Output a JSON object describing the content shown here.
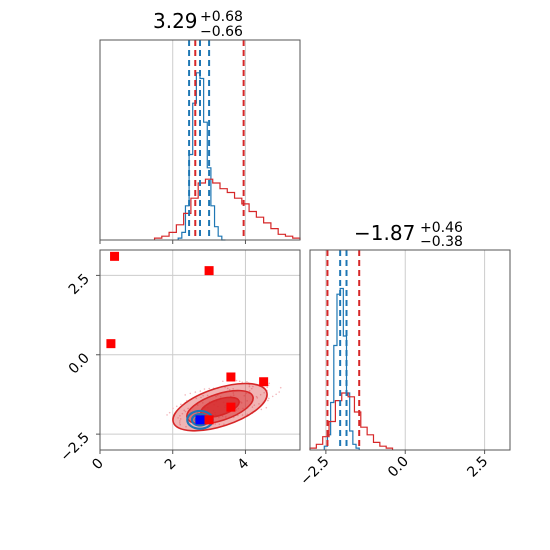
{
  "chart_data": [
    {
      "type": "histogram",
      "panel": "top-left marginal",
      "title": {
        "value": "3.29",
        "plus": "+0.68",
        "minus": "−0.66"
      },
      "xlim": [
        0,
        5.5
      ],
      "grid": true,
      "series": [
        {
          "color": "#1f77b4",
          "x": [
            2.2,
            2.3,
            2.4,
            2.5,
            2.6,
            2.7,
            2.8,
            2.9,
            3.0,
            3.1,
            3.2,
            3.3,
            3.4
          ],
          "values": [
            0.01,
            0.04,
            0.18,
            0.45,
            0.72,
            0.88,
            0.85,
            0.62,
            0.38,
            0.18,
            0.07,
            0.02,
            0.0
          ]
        },
        {
          "color": "#d62728",
          "x": [
            1.6,
            1.8,
            2.0,
            2.2,
            2.4,
            2.6,
            2.8,
            3.0,
            3.2,
            3.4,
            3.6,
            3.8,
            4.0,
            4.2,
            4.4,
            4.6,
            4.8,
            5.0,
            5.2,
            5.4
          ],
          "values": [
            0.01,
            0.02,
            0.04,
            0.08,
            0.14,
            0.22,
            0.3,
            0.32,
            0.3,
            0.27,
            0.25,
            0.22,
            0.19,
            0.15,
            0.12,
            0.09,
            0.06,
            0.03,
            0.02,
            0.01
          ]
        }
      ],
      "quantile_lines": [
        {
          "color": "#1f77b4",
          "x": [
            2.45,
            2.75,
            3.0
          ]
        },
        {
          "color": "#d62728",
          "x": [
            2.62,
            3.95
          ]
        }
      ]
    },
    {
      "type": "histogram",
      "panel": "bottom-right marginal",
      "title": {
        "value": "−1.87",
        "plus": "+0.46",
        "minus": "−0.38"
      },
      "xlim": [
        -3.0,
        3.3
      ],
      "x_ticks": [
        "−2.5",
        "0.0",
        "2.5"
      ],
      "grid": true,
      "series": [
        {
          "color": "#1f77b4",
          "x": [
            -2.5,
            -2.4,
            -2.3,
            -2.2,
            -2.1,
            -2.0,
            -1.9,
            -1.8,
            -1.7,
            -1.6,
            -1.5
          ],
          "values": [
            0.02,
            0.08,
            0.25,
            0.55,
            0.82,
            0.85,
            0.6,
            0.3,
            0.1,
            0.03,
            0.01
          ]
        },
        {
          "color": "#d62728",
          "x": [
            -2.9,
            -2.7,
            -2.5,
            -2.3,
            -2.1,
            -1.9,
            -1.7,
            -1.5,
            -1.3,
            -1.1,
            -0.9,
            -0.7,
            -0.5
          ],
          "values": [
            0.01,
            0.03,
            0.07,
            0.15,
            0.26,
            0.3,
            0.28,
            0.2,
            0.12,
            0.08,
            0.04,
            0.02,
            0.01
          ]
        }
      ],
      "quantile_lines": [
        {
          "color": "#1f77b4",
          "x": [
            -2.05,
            -1.85
          ]
        },
        {
          "color": "#d62728",
          "x": [
            -2.45,
            -1.45
          ]
        }
      ]
    },
    {
      "type": "scatter",
      "panel": "bottom-left joint",
      "xlim": [
        0,
        5.5
      ],
      "ylim": [
        -3.0,
        3.3
      ],
      "x_ticks": [
        "0",
        "2",
        "4"
      ],
      "y_ticks": [
        "−2.5",
        "0.0",
        "2.5"
      ],
      "grid": true,
      "points": [
        {
          "x": 0.4,
          "y": 3.1,
          "color": "#ff0000"
        },
        {
          "x": 3.0,
          "y": 2.65,
          "color": "#ff0000"
        },
        {
          "x": 0.3,
          "y": 0.35,
          "color": "#ff0000"
        },
        {
          "x": 3.6,
          "y": -0.7,
          "color": "#ff0000"
        },
        {
          "x": 4.5,
          "y": -0.85,
          "color": "#ff0000"
        },
        {
          "x": 3.6,
          "y": -1.65,
          "color": "#ff0000"
        },
        {
          "x": 2.8,
          "y": -2.05,
          "color": "#ff0000"
        },
        {
          "x": 3.0,
          "y": -2.05,
          "color": "#ff0000"
        },
        {
          "x": 2.75,
          "y": -2.05,
          "color": "#0000ff"
        }
      ],
      "contours": [
        {
          "color": "#d62728",
          "cx": 3.3,
          "cy": -1.65,
          "levels": [
            [
              1.35,
              0.6
            ],
            [
              0.95,
              0.42
            ],
            [
              0.55,
              0.25
            ]
          ]
        },
        {
          "color": "#1f77b4",
          "cx": 2.75,
          "cy": -2.05,
          "levels": [
            [
              0.35,
              0.28
            ],
            [
              0.22,
              0.18
            ],
            [
              0.12,
              0.1
            ]
          ]
        }
      ]
    }
  ]
}
